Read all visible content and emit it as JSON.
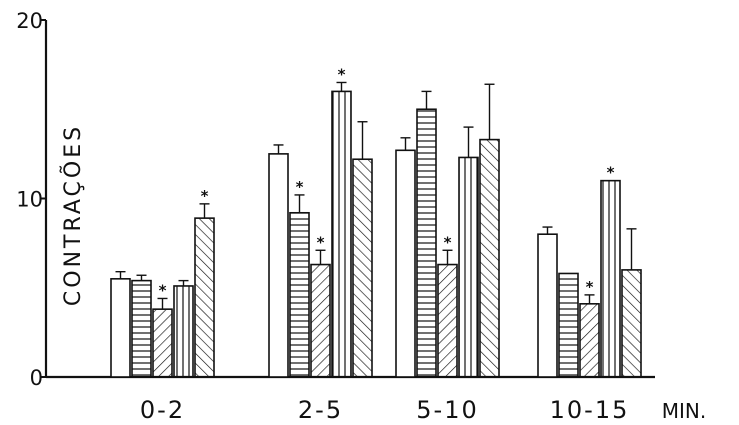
{
  "chart_data": {
    "type": "bar",
    "title": "",
    "ylabel": "CONTRAÇÕES",
    "xlabel": "MIN.",
    "ylim": [
      0,
      20
    ],
    "yticks": [
      0,
      10,
      20
    ],
    "grid": false,
    "legend": "none",
    "categories": [
      "0-2",
      "2-5",
      "5-10",
      "10-15"
    ],
    "series": [
      {
        "pattern": "empty",
        "values": [
          5.5,
          12.5,
          12.7,
          8.0
        ],
        "errors": [
          0.4,
          0.5,
          0.7,
          0.4
        ],
        "significant": [
          false,
          false,
          false,
          false
        ]
      },
      {
        "pattern": "horizontal",
        "values": [
          5.4,
          9.2,
          15.0,
          5.8
        ],
        "errors": [
          0.3,
          1.0,
          1.0,
          0.0
        ],
        "significant": [
          false,
          true,
          false,
          false
        ]
      },
      {
        "pattern": "diagonal-right",
        "values": [
          3.8,
          6.3,
          6.3,
          4.1
        ],
        "errors": [
          0.6,
          0.8,
          0.8,
          0.5
        ],
        "significant": [
          true,
          true,
          true,
          true
        ]
      },
      {
        "pattern": "vertical",
        "values": [
          5.1,
          16.0,
          12.3,
          11.0
        ],
        "errors": [
          0.3,
          0.5,
          1.7,
          0.0
        ],
        "significant": [
          false,
          true,
          false,
          true
        ]
      },
      {
        "pattern": "diagonal-left",
        "values": [
          8.9,
          12.2,
          13.3,
          6.0
        ],
        "errors": [
          0.8,
          2.1,
          3.1,
          2.3
        ],
        "significant": [
          true,
          false,
          false,
          false
        ]
      }
    ],
    "significance_marker": "*"
  }
}
